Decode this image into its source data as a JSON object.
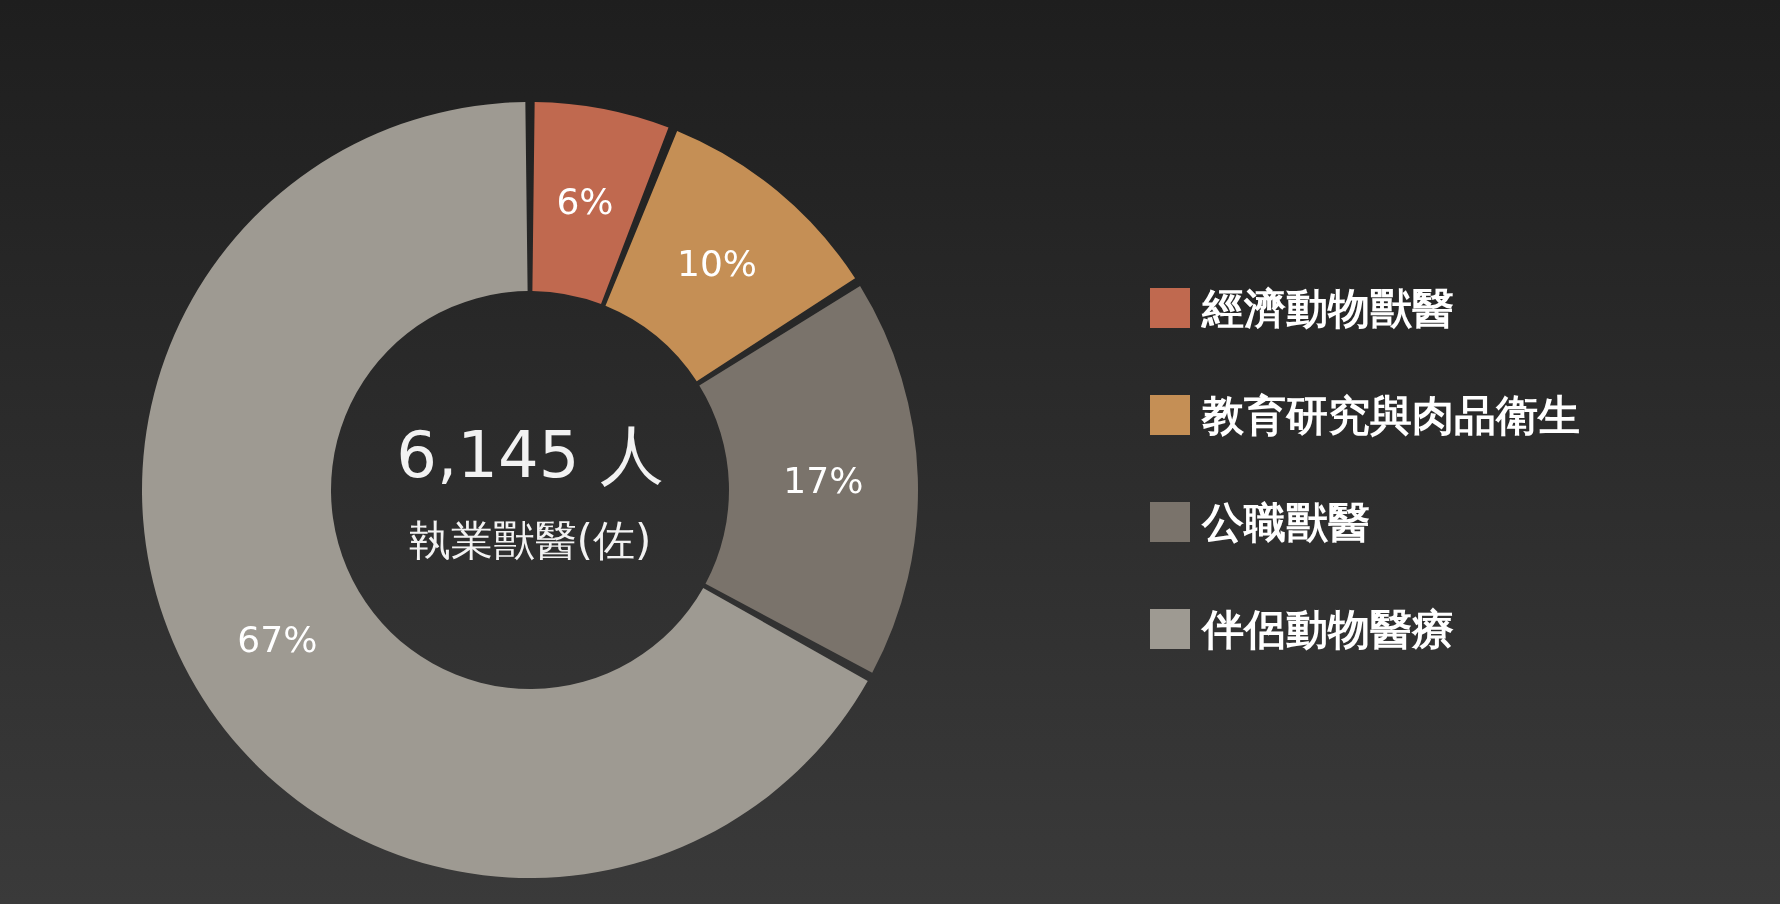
{
  "chart_data": {
    "type": "donut",
    "categories": [
      "經濟動物獸醫",
      "教育研究與肉品衛生",
      "公職獸醫",
      "伴侶動物醫療"
    ],
    "values": [
      6,
      10,
      17,
      67
    ],
    "colors": [
      "#c0694f",
      "#c58f55",
      "#7a736b",
      "#9e9a92"
    ],
    "value_labels": [
      "6%",
      "10%",
      "17%",
      "67%"
    ],
    "annotations": [
      "6,145 人",
      "執業獸醫(佐)"
    ],
    "legend": "right"
  }
}
